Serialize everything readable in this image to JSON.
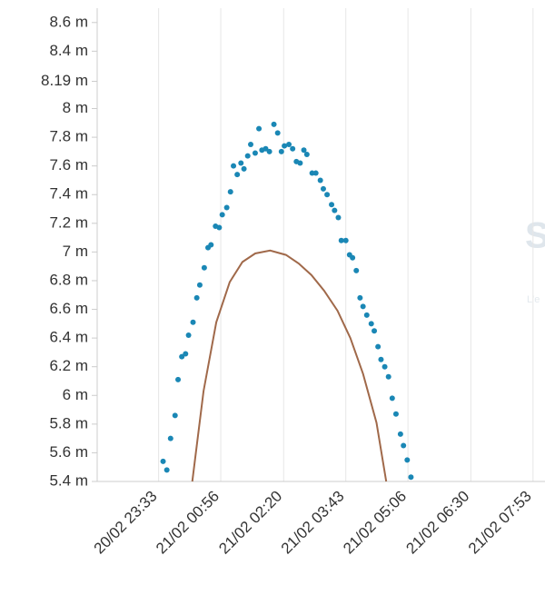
{
  "chart_data": {
    "type": "line",
    "xlim": [
      "20/02 22:11",
      "21/02 08:09"
    ],
    "xticks": [
      "20/02 23:33",
      "21/02 00:56",
      "21/02 02:20",
      "21/02 03:43",
      "21/02 05:06",
      "21/02 06:30",
      "21/02 07:53"
    ],
    "ylim": [
      5.4,
      8.7
    ],
    "yticks": [
      {
        "value": 8.6,
        "label": "8.6 m"
      },
      {
        "value": 8.4,
        "label": "8.4 m"
      },
      {
        "value": 8.19,
        "label": "8.19 m"
      },
      {
        "value": 8,
        "label": "8 m"
      },
      {
        "value": 7.8,
        "label": "7.8 m"
      },
      {
        "value": 7.6,
        "label": "7.6 m"
      },
      {
        "value": 7.4,
        "label": "7.4 m"
      },
      {
        "value": 7.2,
        "label": "7.2 m"
      },
      {
        "value": 7,
        "label": "7 m"
      },
      {
        "value": 6.8,
        "label": "6.8 m"
      },
      {
        "value": 6.6,
        "label": "6.6 m"
      },
      {
        "value": 6.4,
        "label": "6.4 m"
      },
      {
        "value": 6.2,
        "label": "6.2 m"
      },
      {
        "value": 6,
        "label": "6 m"
      },
      {
        "value": 5.8,
        "label": "5.8 m"
      },
      {
        "value": 5.6,
        "label": "5.6 m"
      },
      {
        "value": 5.4,
        "label": "5.4 m"
      }
    ],
    "grid": true,
    "annotations": [
      "S",
      "L'e"
    ],
    "series": [
      {
        "type": "scatter",
        "color": "#1a87b5",
        "x": [
          "20/02 23:39",
          "20/02 23:44",
          "20/02 23:49",
          "20/02 23:55",
          "20/02 23:59",
          "21/02 00:04",
          "21/02 00:09",
          "21/02 00:13",
          "21/02 00:19",
          "21/02 00:24",
          "21/02 00:28",
          "21/02 00:34",
          "21/02 00:39",
          "21/02 00:43",
          "21/02 00:49",
          "21/02 00:54",
          "21/02 00:58",
          "21/02 01:04",
          "21/02 01:09",
          "21/02 01:13",
          "21/02 01:18",
          "21/02 01:23",
          "21/02 01:27",
          "21/02 01:32",
          "21/02 01:36",
          "21/02 01:42",
          "21/02 01:47",
          "21/02 01:51",
          "21/02 01:56",
          "21/02 02:01",
          "21/02 02:07",
          "21/02 02:12",
          "21/02 02:17",
          "21/02 02:21",
          "21/02 02:27",
          "21/02 02:32",
          "21/02 02:37",
          "21/02 02:42",
          "21/02 02:47",
          "21/02 02:51",
          "21/02 02:58",
          "21/02 03:03",
          "21/02 03:09",
          "21/02 03:13",
          "21/02 03:18",
          "21/02 03:24",
          "21/02 03:28",
          "21/02 03:33",
          "21/02 03:37",
          "21/02 03:43",
          "21/02 03:48",
          "21/02 03:52",
          "21/02 03:57",
          "21/02 04:02",
          "21/02 04:06",
          "21/02 04:11",
          "21/02 04:17",
          "21/02 04:21",
          "21/02 04:26",
          "21/02 04:30",
          "21/02 04:35",
          "21/02 04:40",
          "21/02 04:45",
          "21/02 04:50",
          "21/02 04:56",
          "21/02 05:00",
          "21/02 05:05",
          "21/02 05:10"
        ],
        "values": [
          5.54,
          5.48,
          5.7,
          5.86,
          6.11,
          6.27,
          6.29,
          6.42,
          6.51,
          6.68,
          6.77,
          6.89,
          7.03,
          7.05,
          7.18,
          7.17,
          7.26,
          7.31,
          7.42,
          7.6,
          7.54,
          7.62,
          7.58,
          7.67,
          7.75,
          7.69,
          7.86,
          7.71,
          7.72,
          7.7,
          7.89,
          7.83,
          7.7,
          7.74,
          7.75,
          7.72,
          7.63,
          7.62,
          7.71,
          7.68,
          7.55,
          7.55,
          7.5,
          7.44,
          7.4,
          7.33,
          7.29,
          7.24,
          7.08,
          7.08,
          6.98,
          6.96,
          6.87,
          6.68,
          6.62,
          6.56,
          6.5,
          6.45,
          6.34,
          6.25,
          6.2,
          6.13,
          5.98,
          5.87,
          5.73,
          5.65,
          5.55,
          5.43
        ]
      },
      {
        "type": "line",
        "color": "#a0694a",
        "x": [
          "21/02 00:18",
          "21/02 00:33",
          "21/02 00:50",
          "21/02 01:08",
          "21/02 01:25",
          "21/02 01:42",
          "21/02 02:02",
          "21/02 02:23",
          "21/02 02:40",
          "21/02 02:57",
          "21/02 03:14",
          "21/02 03:32",
          "21/02 03:49",
          "21/02 04:06",
          "21/02 04:24",
          "21/02 04:37"
        ],
        "values": [
          5.4,
          6.03,
          6.51,
          6.79,
          6.93,
          6.99,
          7.01,
          6.98,
          6.92,
          6.84,
          6.73,
          6.59,
          6.4,
          6.15,
          5.81,
          5.4
        ]
      }
    ]
  }
}
